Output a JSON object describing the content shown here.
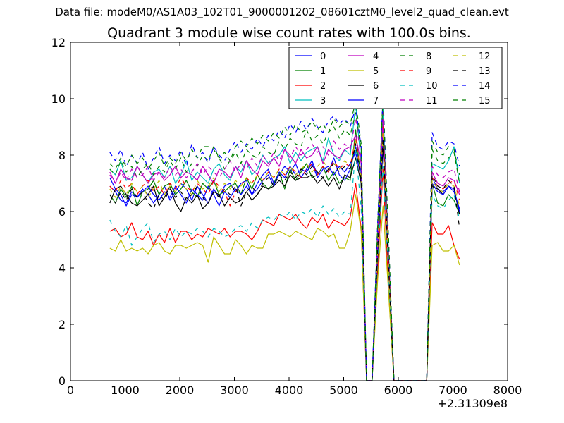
{
  "suptitle": "Data file: modeM0/AS1A03_102T01_9000001202_08601cztM0_level2_quad_clean.evt",
  "chart_data": {
    "type": "line",
    "title": "Quadrant 3 module wise count rates with 100.0s bins.",
    "xlabel": "",
    "ylabel": "",
    "x_offset_label": "+2.31309e8",
    "xlim": [
      0,
      8000
    ],
    "ylim": [
      0,
      12
    ],
    "xticks": [
      0,
      1000,
      2000,
      3000,
      4000,
      5000,
      6000,
      7000,
      8000
    ],
    "yticks": [
      0,
      2,
      4,
      6,
      8,
      10,
      12
    ],
    "xticklabels": [
      "0",
      "1000",
      "2000",
      "3000",
      "4000",
      "5000",
      "6000",
      "7000",
      "8000"
    ],
    "yticklabels": [
      "0",
      "2",
      "4",
      "6",
      "8",
      "10",
      "12"
    ],
    "legend": {
      "location": "upper right",
      "columns": 4
    },
    "x": [
      720,
      820,
      920,
      1020,
      1120,
      1220,
      1320,
      1420,
      1520,
      1620,
      1720,
      1820,
      1920,
      2020,
      2120,
      2220,
      2320,
      2420,
      2520,
      2620,
      2720,
      2820,
      2920,
      3020,
      3120,
      3220,
      3320,
      3420,
      3520,
      3620,
      3720,
      3820,
      3920,
      4020,
      4120,
      4220,
      4320,
      4420,
      4520,
      4620,
      4720,
      4820,
      4920,
      5020,
      5120,
      5220,
      5320,
      5420,
      5520,
      5620,
      5720,
      5820,
      5920,
      6020,
      6120,
      6220,
      6320,
      6420,
      6520,
      6620,
      6720,
      6820,
      6920,
      7020,
      7120
    ],
    "series": [
      {
        "name": "0",
        "color": "#0000ff",
        "linestyle": "solid",
        "values": [
          6.9,
          6.7,
          6.4,
          6.3,
          6.7,
          6.5,
          6.8,
          6.6,
          6.3,
          6.6,
          6.9,
          6.4,
          6.7,
          7.0,
          6.8,
          6.4,
          6.9,
          6.6,
          6.3,
          6.8,
          6.5,
          6.9,
          7.0,
          6.7,
          7.0,
          7.1,
          6.6,
          7.0,
          7.3,
          7.5,
          7.0,
          7.3,
          7.6,
          7.4,
          7.7,
          7.2,
          7.5,
          7.8,
          7.3,
          7.6,
          7.4,
          7.9,
          7.3,
          7.1,
          7.5,
          8.3,
          7.4,
          0.0,
          0.0,
          4.5,
          8.3,
          4.2,
          0.0,
          0.0,
          0.0,
          0.0,
          0.0,
          0.0,
          0.0,
          7.2,
          6.8,
          6.7,
          6.9,
          6.7,
          6.1
        ]
      },
      {
        "name": "1",
        "color": "#008000",
        "linestyle": "solid",
        "values": [
          6.6,
          6.3,
          6.8,
          6.5,
          6.9,
          6.2,
          6.7,
          6.8,
          7.1,
          6.6,
          6.9,
          7.0,
          6.6,
          6.8,
          7.1,
          6.7,
          6.5,
          7.0,
          6.8,
          7.1,
          6.6,
          6.7,
          6.9,
          7.0,
          6.6,
          7.2,
          6.8,
          7.3,
          7.0,
          6.8,
          7.0,
          7.4,
          6.8,
          7.5,
          7.1,
          7.4,
          7.7,
          7.2,
          7.3,
          7.6,
          7.1,
          7.4,
          7.0,
          7.2,
          7.1,
          8.9,
          7.0,
          0.0,
          0.0,
          4.6,
          9.4,
          4.2,
          0.0,
          0.0,
          0.0,
          0.0,
          0.0,
          0.0,
          0.0,
          7.0,
          6.3,
          6.2,
          6.6,
          6.4,
          5.9
        ]
      },
      {
        "name": "2",
        "color": "#ff0000",
        "linestyle": "solid",
        "values": [
          5.3,
          5.4,
          5.1,
          5.2,
          5.6,
          5.1,
          5.0,
          5.3,
          4.8,
          5.2,
          4.9,
          5.4,
          4.9,
          5.3,
          5.3,
          5.0,
          5.2,
          5.1,
          5.4,
          5.3,
          5.2,
          5.4,
          5.1,
          5.3,
          5.3,
          5.2,
          5.0,
          5.3,
          5.7,
          5.6,
          5.5,
          5.9,
          5.8,
          5.7,
          5.9,
          5.6,
          5.4,
          5.8,
          5.6,
          5.9,
          5.4,
          5.7,
          5.6,
          5.5,
          5.8,
          7.0,
          5.4,
          0.0,
          0.0,
          3.8,
          7.5,
          3.3,
          0.0,
          0.0,
          0.0,
          0.0,
          0.0,
          0.0,
          0.0,
          5.6,
          5.2,
          5.2,
          5.5,
          4.8,
          4.3
        ]
      },
      {
        "name": "3",
        "color": "#00bfbf",
        "linestyle": "solid",
        "values": [
          7.5,
          7.3,
          7.8,
          7.1,
          7.2,
          7.6,
          7.3,
          7.0,
          7.4,
          7.5,
          7.2,
          7.6,
          7.0,
          7.3,
          7.8,
          7.1,
          7.4,
          7.2,
          7.0,
          7.5,
          7.7,
          7.3,
          7.1,
          7.6,
          7.4,
          7.8,
          7.3,
          7.5,
          8.0,
          7.7,
          7.9,
          8.0,
          8.3,
          7.7,
          8.1,
          7.8,
          8.1,
          8.2,
          8.3,
          7.8,
          8.6,
          8.0,
          7.8,
          8.2,
          8.0,
          9.8,
          7.7,
          0.0,
          0.0,
          5.2,
          9.7,
          4.7,
          0.0,
          0.0,
          0.0,
          0.0,
          0.0,
          0.0,
          0.0,
          7.7,
          7.6,
          7.5,
          7.8,
          8.3,
          7.0
        ]
      },
      {
        "name": "4",
        "color": "#bf00bf",
        "linestyle": "solid",
        "values": [
          7.4,
          7.0,
          7.5,
          7.2,
          7.1,
          7.6,
          7.3,
          7.0,
          7.3,
          7.4,
          7.1,
          7.3,
          7.6,
          7.2,
          7.4,
          7.3,
          7.1,
          7.6,
          7.3,
          7.0,
          7.5,
          7.4,
          7.2,
          7.6,
          7.2,
          7.8,
          7.5,
          7.3,
          7.8,
          7.6,
          7.9,
          7.6,
          8.2,
          8.0,
          7.7,
          8.2,
          7.9,
          8.0,
          8.3,
          7.7,
          8.2,
          8.0,
          7.9,
          8.2,
          8.3,
          8.7,
          7.7,
          0.0,
          0.0,
          4.8,
          9.2,
          4.5,
          0.0,
          0.0,
          0.0,
          0.0,
          0.0,
          0.0,
          0.0,
          7.4,
          7.0,
          6.9,
          7.2,
          7.1,
          6.6
        ]
      },
      {
        "name": "5",
        "color": "#bfbf00",
        "linestyle": "solid",
        "values": [
          4.7,
          4.6,
          5.0,
          4.6,
          4.7,
          4.6,
          4.7,
          4.5,
          4.8,
          4.9,
          4.6,
          4.5,
          4.8,
          4.8,
          4.7,
          4.8,
          4.9,
          4.8,
          4.2,
          5.1,
          4.8,
          4.5,
          4.5,
          5.0,
          4.8,
          4.5,
          4.8,
          4.7,
          4.7,
          5.2,
          5.2,
          5.3,
          5.2,
          5.1,
          5.3,
          5.2,
          5.1,
          5.0,
          5.4,
          5.3,
          5.1,
          5.2,
          4.7,
          4.7,
          5.3,
          6.6,
          5.3,
          0.0,
          0.0,
          3.5,
          6.2,
          3.2,
          0.0,
          0.0,
          0.0,
          0.0,
          0.0,
          0.0,
          0.0,
          4.8,
          4.9,
          4.6,
          4.6,
          4.8,
          4.1
        ]
      },
      {
        "name": "6",
        "color": "#000000",
        "linestyle": "solid",
        "values": [
          6.3,
          6.8,
          6.9,
          6.6,
          6.3,
          6.2,
          6.4,
          6.6,
          6.9,
          6.2,
          6.5,
          6.9,
          6.3,
          6.0,
          6.5,
          6.3,
          6.6,
          6.1,
          6.3,
          6.7,
          6.6,
          6.2,
          6.5,
          6.3,
          6.4,
          6.7,
          6.4,
          6.6,
          6.9,
          6.8,
          6.9,
          7.1,
          6.9,
          7.3,
          7.1,
          7.2,
          7.2,
          7.3,
          7.0,
          7.2,
          6.9,
          7.2,
          6.8,
          7.3,
          7.2,
          7.9,
          7.0,
          0.0,
          0.0,
          4.3,
          8.4,
          4.1,
          0.0,
          0.0,
          0.0,
          0.0,
          0.0,
          0.0,
          0.0,
          6.9,
          6.8,
          6.6,
          6.9,
          6.8,
          5.9
        ]
      },
      {
        "name": "7",
        "color": "#0000ff",
        "linestyle": "solid",
        "values": [
          7.2,
          6.8,
          6.6,
          6.2,
          6.6,
          6.5,
          6.7,
          6.9,
          6.6,
          6.4,
          6.7,
          6.5,
          6.9,
          6.6,
          6.3,
          6.8,
          6.6,
          6.4,
          6.9,
          6.6,
          6.2,
          6.7,
          6.5,
          6.8,
          6.6,
          6.9,
          6.6,
          6.8,
          7.1,
          7.3,
          6.9,
          7.4,
          7.2,
          7.6,
          7.3,
          7.5,
          7.4,
          7.7,
          7.2,
          7.5,
          7.6,
          7.3,
          7.6,
          7.4,
          7.7,
          8.1,
          7.2,
          0.0,
          0.0,
          4.5,
          8.8,
          4.3,
          0.0,
          0.0,
          0.0,
          0.0,
          0.0,
          0.0,
          0.0,
          7.0,
          6.7,
          6.6,
          6.9,
          6.8,
          6.0
        ]
      },
      {
        "name": "8",
        "color": "#008000",
        "linestyle": "dashed",
        "values": [
          7.5,
          7.3,
          7.8,
          7.4,
          7.6,
          7.2,
          7.5,
          7.7,
          7.3,
          7.6,
          7.4,
          7.8,
          7.5,
          7.9,
          7.4,
          7.7,
          7.6,
          8.0,
          7.8,
          8.3,
          7.9,
          7.5,
          7.8,
          8.1,
          7.7,
          8.2,
          8.0,
          7.9,
          8.3,
          8.1,
          8.0,
          8.5,
          8.2,
          8.6,
          8.4,
          8.3,
          8.9,
          8.5,
          8.7,
          8.4,
          8.8,
          9.0,
          8.6,
          8.9,
          8.7,
          9.5,
          8.2,
          0.0,
          0.0,
          5.3,
          10.2,
          5.0,
          0.0,
          0.0,
          0.0,
          0.0,
          0.0,
          0.0,
          0.0,
          8.2,
          7.8,
          7.7,
          7.9,
          8.1,
          7.0
        ]
      },
      {
        "name": "9",
        "color": "#ff0000",
        "linestyle": "dashed",
        "values": [
          6.9,
          6.7,
          7.1,
          6.8,
          7.0,
          6.6,
          6.9,
          7.1,
          6.7,
          6.9,
          6.6,
          7.0,
          6.8,
          7.2,
          6.9,
          6.7,
          7.0,
          6.8,
          6.6,
          7.1,
          6.9,
          6.7,
          6.2,
          6.7,
          6.9,
          7.2,
          7.0,
          7.3,
          7.1,
          7.4,
          7.2,
          7.5,
          7.3,
          7.6,
          7.4,
          7.2,
          7.5,
          7.7,
          7.3,
          7.6,
          7.4,
          7.8,
          7.5,
          7.7,
          7.6,
          8.6,
          7.3,
          0.0,
          0.0,
          4.7,
          9.0,
          4.4,
          0.0,
          0.0,
          0.0,
          0.0,
          0.0,
          0.0,
          0.0,
          7.2,
          6.9,
          6.8,
          7.0,
          7.1,
          6.4
        ]
      },
      {
        "name": "10",
        "color": "#00bfbf",
        "linestyle": "dashed",
        "values": [
          5.7,
          5.3,
          5.1,
          5.5,
          4.8,
          5.1,
          5.4,
          5.6,
          4.9,
          5.2,
          5.3,
          5.0,
          5.4,
          5.1,
          5.3,
          5.2,
          5.4,
          5.3,
          5.1,
          5.4,
          5.3,
          5.1,
          5.2,
          5.4,
          5.5,
          5.3,
          5.6,
          5.4,
          5.7,
          5.8,
          5.7,
          5.9,
          5.8,
          6.0,
          5.7,
          6.0,
          5.9,
          6.1,
          5.8,
          6.2,
          5.9,
          6.1,
          5.8,
          6.0,
          5.9,
          8.2,
          6.1,
          0.0,
          0.0,
          4.2,
          7.6,
          3.8,
          0.0,
          0.0,
          0.0,
          0.0,
          0.0,
          0.0,
          0.0,
          6.6,
          6.2,
          6.1,
          6.4,
          6.6,
          5.7
        ]
      },
      {
        "name": "11",
        "color": "#bf00bf",
        "linestyle": "dashed",
        "values": [
          7.3,
          7.0,
          7.4,
          7.1,
          7.5,
          7.2,
          7.3,
          7.6,
          7.1,
          7.4,
          7.2,
          7.6,
          7.3,
          7.5,
          7.2,
          7.4,
          7.7,
          7.3,
          7.6,
          7.4,
          7.2,
          7.5,
          7.8,
          7.4,
          7.7,
          7.5,
          7.9,
          7.6,
          8.0,
          7.7,
          8.1,
          7.8,
          8.2,
          7.9,
          8.3,
          8.0,
          8.2,
          8.4,
          8.1,
          8.3,
          8.0,
          8.5,
          8.2,
          8.4,
          8.2,
          9.3,
          7.9,
          0.0,
          0.0,
          5.0,
          9.5,
          4.7,
          0.0,
          0.0,
          0.0,
          0.0,
          0.0,
          0.0,
          0.0,
          7.6,
          7.3,
          7.2,
          7.4,
          7.5,
          6.7
        ]
      },
      {
        "name": "12",
        "color": "#bfbf00",
        "linestyle": "dashed",
        "values": [
          6.8,
          6.5,
          6.9,
          6.6,
          7.0,
          6.7,
          6.9,
          6.5,
          6.8,
          7.1,
          6.6,
          6.9,
          6.7,
          7.0,
          6.8,
          6.6,
          7.1,
          6.8,
          6.9,
          7.2,
          6.7,
          7.0,
          6.8,
          7.1,
          6.9,
          7.2,
          7.0,
          7.3,
          7.1,
          7.4,
          7.2,
          7.5,
          7.3,
          7.6,
          7.3,
          7.5,
          7.7,
          7.4,
          7.6,
          7.8,
          7.5,
          7.7,
          7.5,
          7.8,
          7.6,
          8.5,
          7.2,
          0.0,
          0.0,
          4.6,
          8.8,
          4.2,
          0.0,
          0.0,
          0.0,
          0.0,
          0.0,
          0.0,
          0.0,
          7.1,
          6.8,
          6.7,
          7.0,
          6.9,
          6.2
        ]
      },
      {
        "name": "13",
        "color": "#000000",
        "linestyle": "dashed",
        "values": [
          6.6,
          6.3,
          6.7,
          6.4,
          6.8,
          6.5,
          6.7,
          6.3,
          6.1,
          6.6,
          6.4,
          6.8,
          6.5,
          6.7,
          6.4,
          6.6,
          6.9,
          6.5,
          6.3,
          6.7,
          6.5,
          6.8,
          6.6,
          6.9,
          6.2,
          6.7,
          6.9,
          6.6,
          7.0,
          7.2,
          6.9,
          7.3,
          7.1,
          7.4,
          7.2,
          7.5,
          7.3,
          7.6,
          7.4,
          7.2,
          7.5,
          7.7,
          7.4,
          7.6,
          7.5,
          8.4,
          7.1,
          0.0,
          0.0,
          4.5,
          8.6,
          4.1,
          0.0,
          0.0,
          0.0,
          0.0,
          0.0,
          0.0,
          0.0,
          7.3,
          6.9,
          6.8,
          7.1,
          6.9,
          5.4
        ]
      },
      {
        "name": "14",
        "color": "#0000ff",
        "linestyle": "dashed",
        "values": [
          8.1,
          7.8,
          8.2,
          7.6,
          8.0,
          7.7,
          8.1,
          7.5,
          7.9,
          8.3,
          7.7,
          8.0,
          7.8,
          8.2,
          7.6,
          8.4,
          7.9,
          8.1,
          7.7,
          8.3,
          8.0,
          7.8,
          8.2,
          8.5,
          8.1,
          8.4,
          8.2,
          8.6,
          8.3,
          8.7,
          8.5,
          8.9,
          8.6,
          9.1,
          8.8,
          9.2,
          8.9,
          9.3,
          9.0,
          8.8,
          9.2,
          9.4,
          9.1,
          9.3,
          9.0,
          9.7,
          8.3,
          0.0,
          0.0,
          5.5,
          10.1,
          5.1,
          0.0,
          0.0,
          0.0,
          0.0,
          0.0,
          0.0,
          0.0,
          8.8,
          8.3,
          8.2,
          8.5,
          8.4,
          7.6
        ]
      },
      {
        "name": "15",
        "color": "#008000",
        "linestyle": "dashed",
        "values": [
          7.7,
          7.5,
          7.9,
          7.6,
          8.0,
          7.7,
          7.9,
          7.5,
          7.8,
          8.1,
          7.6,
          7.9,
          7.7,
          8.1,
          7.8,
          8.2,
          7.9,
          8.3,
          8.3,
          8.2,
          7.9,
          8.1,
          7.8,
          8.3,
          8.5,
          8.3,
          8.6,
          8.4,
          8.7,
          8.5,
          8.8,
          8.6,
          9.0,
          8.7,
          9.1,
          8.8,
          8.9,
          9.2,
          8.9,
          9.1,
          8.8,
          9.3,
          9.0,
          9.2,
          9.1,
          9.9,
          8.4,
          0.0,
          0.0,
          5.4,
          10.0,
          5.2,
          0.0,
          0.0,
          0.0,
          0.0,
          0.0,
          0.0,
          0.0,
          8.5,
          8.1,
          8.0,
          8.3,
          8.2,
          7.3
        ]
      }
    ]
  }
}
